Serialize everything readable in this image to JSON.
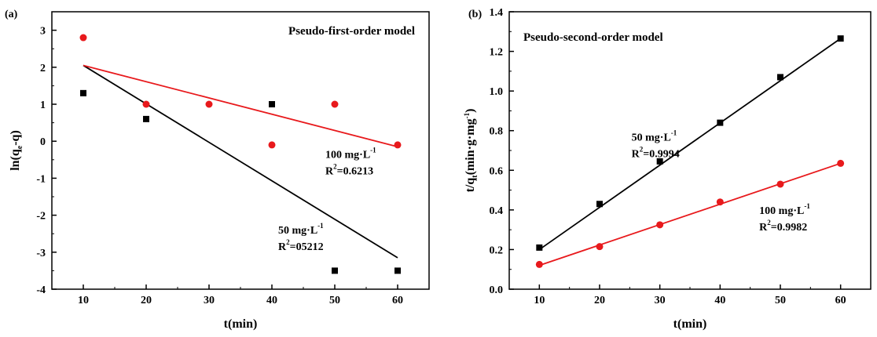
{
  "chart_data": [
    {
      "type": "scatter",
      "panel_label": "(a)",
      "title": "Pseudo-first-order model",
      "xlabel": "t(min)",
      "ylabel": {
        "main": "ln(q",
        "sub": "e",
        "tail": "-q)"
      },
      "xlim": [
        5,
        65
      ],
      "ylim": [
        -4,
        3.5
      ],
      "xticks": [
        10,
        20,
        30,
        40,
        50,
        60
      ],
      "yticks": [
        -4,
        -3,
        -2,
        -1,
        0,
        1,
        2,
        3
      ],
      "grid": false,
      "series": [
        {
          "key": "s50",
          "marker": "square",
          "color": "#000000",
          "x": [
            10,
            20,
            40,
            50,
            60
          ],
          "y": [
            1.3,
            0.6,
            1.0,
            -3.5,
            -3.5
          ],
          "fit": {
            "x": [
              10,
              60
            ],
            "y": [
              2.05,
              -3.15
            ]
          }
        },
        {
          "key": "s100",
          "marker": "circle",
          "color": "#e8191c",
          "x": [
            10,
            20,
            30,
            40,
            50,
            60
          ],
          "y": [
            2.8,
            1.0,
            1.0,
            -0.1,
            1.0,
            -0.1
          ],
          "fit": {
            "x": [
              10,
              60
            ],
            "y": [
              2.05,
              -0.15
            ]
          }
        }
      ],
      "annotations": [
        {
          "key": "a100",
          "conc": "100 mg·L",
          "conc_sup": "-1",
          "r2_pre": "R",
          "r2_sup": "2",
          "r2_val": "=0.6213",
          "x": 48.5,
          "y": -0.45
        },
        {
          "key": "a50",
          "conc": "50 mg·L",
          "conc_sup": "-1",
          "r2_pre": "R",
          "r2_sup": "2",
          "r2_val": "=05212",
          "x": 41,
          "y": -2.5
        }
      ]
    },
    {
      "type": "scatter",
      "panel_label": "(b)",
      "title": "Pseudo-second-order model",
      "xlabel": "t(min)",
      "ylabel": {
        "main": "t/q",
        "sub": "t",
        "tail": "(min·g·mg",
        "tail_sup": "-1",
        "close": ")"
      },
      "xlim": [
        5,
        65
      ],
      "ylim": [
        0.0,
        1.4
      ],
      "xticks": [
        10,
        20,
        30,
        40,
        50,
        60
      ],
      "yticks": [
        0.0,
        0.2,
        0.4,
        0.6,
        0.8,
        1.0,
        1.2,
        1.4
      ],
      "ytick_labels": [
        "0.0",
        "0.2",
        "0.4",
        "0.6",
        "0.8",
        "1.0",
        "1.2",
        "1.4"
      ],
      "grid": false,
      "series": [
        {
          "key": "s50",
          "marker": "square",
          "color": "#000000",
          "x": [
            10,
            20,
            30,
            40,
            50,
            60
          ],
          "y": [
            0.21,
            0.43,
            0.645,
            0.84,
            1.07,
            1.265
          ],
          "fit": {
            "x": [
              10,
              60
            ],
            "y": [
              0.2,
              1.265
            ]
          }
        },
        {
          "key": "s100",
          "marker": "circle",
          "color": "#e8191c",
          "x": [
            10,
            20,
            30,
            40,
            50,
            60
          ],
          "y": [
            0.125,
            0.215,
            0.325,
            0.44,
            0.53,
            0.635
          ],
          "fit": {
            "x": [
              10,
              60
            ],
            "y": [
              0.12,
              0.635
            ]
          }
        }
      ],
      "annotations": [
        {
          "key": "a50",
          "conc": "50 mg·L",
          "conc_sup": "-1",
          "r2_pre": "R",
          "r2_sup": "2",
          "r2_val": "=0.9994",
          "x": 25.3,
          "y": 0.75
        },
        {
          "key": "a100",
          "conc": "100 mg·L",
          "conc_sup": "-1",
          "r2_pre": "R",
          "r2_sup": "2",
          "r2_val": "=0.9982",
          "x": 46.5,
          "y": 0.38
        }
      ]
    }
  ]
}
